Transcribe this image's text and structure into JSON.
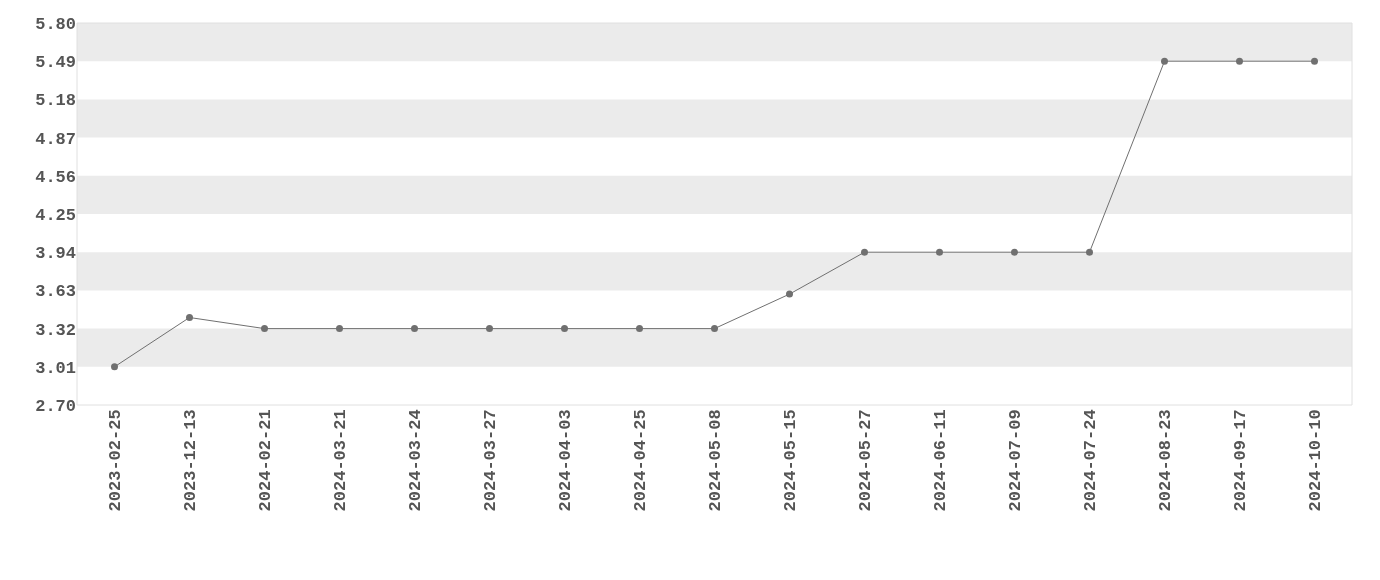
{
  "chart_data": {
    "type": "line",
    "categories": [
      "2023-02-25",
      "2023-12-13",
      "2024-02-21",
      "2024-03-21",
      "2024-03-24",
      "2024-03-27",
      "2024-04-03",
      "2024-04-25",
      "2024-05-08",
      "2024-05-15",
      "2024-05-27",
      "2024-06-11",
      "2024-07-09",
      "2024-07-24",
      "2024-08-23",
      "2024-09-17",
      "2024-10-10"
    ],
    "series": [
      {
        "color": "#707070",
        "values": [
          3.01,
          3.41,
          3.32,
          3.32,
          3.32,
          3.32,
          3.32,
          3.32,
          3.32,
          3.6,
          3.94,
          3.94,
          3.94,
          3.94,
          5.49,
          5.49,
          5.49
        ]
      }
    ],
    "ylim": [
      2.7,
      5.8
    ],
    "yticks": [
      {
        "value": 2.7,
        "label": "2.70"
      },
      {
        "value": 3.01,
        "label": "3.01"
      },
      {
        "value": 3.32,
        "label": "3.32"
      },
      {
        "value": 3.63,
        "label": "3.63"
      },
      {
        "value": 3.94,
        "label": "3.94"
      },
      {
        "value": 4.25,
        "label": "4.25"
      },
      {
        "value": 4.56,
        "label": "4.56"
      },
      {
        "value": 4.87,
        "label": "4.87"
      },
      {
        "value": 5.18,
        "label": "5.18"
      },
      {
        "value": 5.49,
        "label": "5.49"
      },
      {
        "value": 5.8,
        "label": "5.80"
      }
    ],
    "bands": [
      {
        "axis": "y",
        "from": 3.01,
        "to": 3.32,
        "color": "#ebebeb"
      },
      {
        "axis": "y",
        "from": 3.63,
        "to": 3.94,
        "color": "#ebebeb"
      },
      {
        "axis": "y",
        "from": 4.25,
        "to": 4.56,
        "color": "#ebebeb"
      },
      {
        "axis": "y",
        "from": 4.87,
        "to": 5.18,
        "color": "#ebebeb"
      },
      {
        "axis": "y",
        "from": 5.49,
        "to": 5.8,
        "color": "#ebebeb"
      }
    ],
    "marker": "circle",
    "line_style": "solid"
  }
}
